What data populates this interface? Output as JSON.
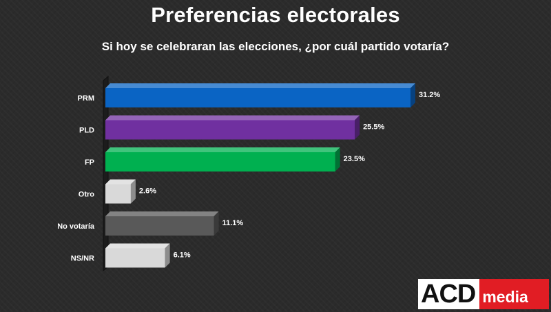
{
  "header": {
    "title": "Preferencias electorales",
    "subtitle": "Si hoy se celebraran las elecciones, ¿por cuál partido votaría?"
  },
  "logo": {
    "part1": "ACD",
    "part2": "media"
  },
  "chart_data": {
    "type": "bar",
    "orientation": "horizontal",
    "categories": [
      "PRM",
      "PLD",
      "FP",
      "Otro",
      "No votaría",
      "NS/NR"
    ],
    "values": [
      31.2,
      25.5,
      23.5,
      2.6,
      11.1,
      6.1
    ],
    "value_labels": [
      "31.2%",
      "25.5%",
      "23.5%",
      "2.6%",
      "11.1%",
      "6.1%"
    ],
    "colors": [
      "#0a64c4",
      "#7030a0",
      "#00b050",
      "#d9d9d9",
      "#595959",
      "#d9d9d9"
    ],
    "xlim": [
      0,
      31.2
    ],
    "grid": false
  }
}
